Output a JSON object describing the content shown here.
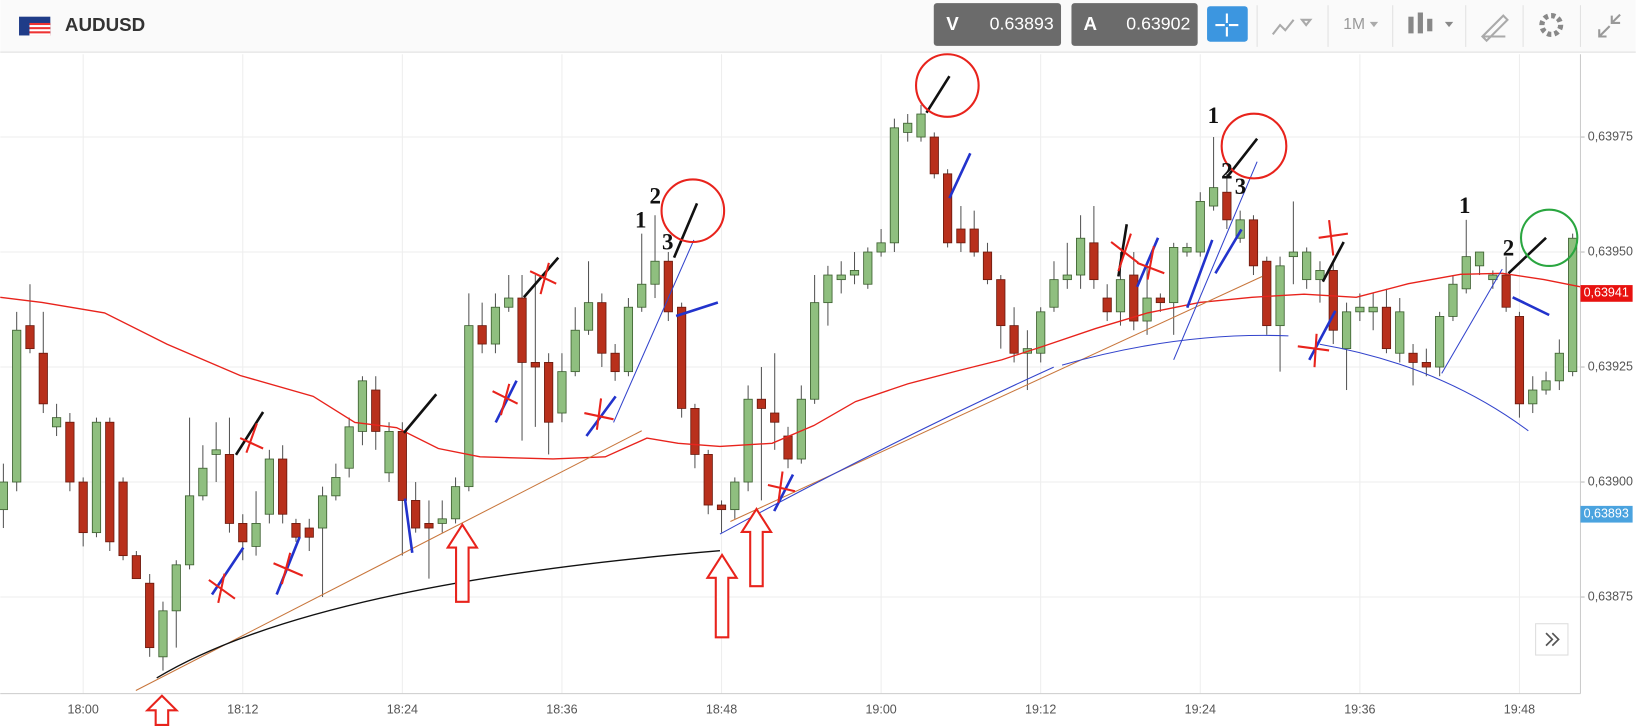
{
  "toolbar": {
    "symbol": "AUDUSD",
    "sell_label": "V",
    "sell_price": "0.63893",
    "buy_label": "A",
    "buy_price": "0.63902",
    "timeframe": "1M"
  },
  "chart_data": {
    "type": "candlestick",
    "up_color": "#8fbf7f",
    "down_color": "#b8301c",
    "grid": true,
    "categories": [
      null,
      null,
      null,
      null,
      null,
      null,
      "18:00",
      null,
      null,
      null,
      null,
      null,
      null,
      null,
      null,
      null,
      null,
      null,
      "18:12",
      null,
      null,
      null,
      null,
      null,
      null,
      null,
      null,
      null,
      null,
      null,
      "18:24",
      null,
      null,
      null,
      null,
      null,
      null,
      null,
      null,
      null,
      null,
      null,
      "18:36",
      null,
      null,
      null,
      null,
      null,
      null,
      null,
      null,
      null,
      null,
      null,
      "18:48",
      null,
      null,
      null,
      null,
      null,
      null,
      null,
      null,
      null,
      null,
      null,
      "19:00",
      null,
      null,
      null,
      null,
      null,
      null,
      null,
      null,
      null,
      null,
      null,
      "19:12",
      null,
      null,
      null,
      null,
      null,
      null,
      null,
      null,
      null,
      null,
      null,
      "19:24",
      null,
      null,
      null,
      null,
      null,
      null,
      null,
      null,
      null,
      null,
      null,
      "19:36",
      null,
      null,
      null,
      null,
      null,
      null,
      null,
      null,
      null,
      null,
      null,
      "19:48",
      null,
      null,
      null,
      null
    ],
    "open": [
      0.63894,
      0.639,
      0.63934,
      0.63928,
      0.63912,
      0.63913,
      0.639,
      0.63889,
      0.63913,
      0.639,
      0.63884,
      0.63878,
      0.63862,
      0.63872,
      0.63882,
      0.63897,
      0.63906,
      0.63906,
      0.63891,
      0.63886,
      0.63893,
      0.63905,
      0.63891,
      0.6389,
      0.6389,
      0.63897,
      0.63903,
      0.63911,
      0.6392,
      0.63902,
      0.63911,
      0.63896,
      0.63891,
      0.63891,
      0.63892,
      0.63899,
      0.63934,
      0.6393,
      0.63938,
      0.6394,
      0.63926,
      0.63926,
      0.63915,
      0.63924,
      0.63933,
      0.63939,
      0.63928,
      0.63924,
      0.63938,
      0.63943,
      0.63948,
      0.63938,
      0.63916,
      0.63906,
      0.63895,
      0.63894,
      0.639,
      0.63918,
      0.63915,
      0.6391,
      0.63905,
      0.63918,
      0.63939,
      0.63944,
      0.63945,
      0.63943,
      0.6395,
      0.63952,
      0.63976,
      0.63975,
      0.63975,
      0.63967,
      0.63955,
      0.63955,
      0.6395,
      0.63944,
      0.63934,
      0.63928,
      0.63928,
      0.63938,
      0.63944,
      0.63945,
      0.63952,
      0.6394,
      0.63937,
      0.63945,
      0.63935,
      0.6394,
      0.63939,
      0.6395,
      0.6395,
      0.6396,
      0.63963,
      0.63953,
      0.63957,
      0.63948,
      0.63934,
      0.63949,
      0.63944,
      0.63944,
      0.63946,
      0.63929,
      0.63937,
      0.63937,
      0.63938,
      0.63928,
      0.63928,
      0.63926,
      0.63925,
      0.63936,
      0.63942,
      0.63947,
      0.63944,
      0.63945,
      0.63936,
      0.63917,
      0.6392,
      0.63922,
      0.63924
    ],
    "high": [
      0.63904,
      0.63937,
      0.63943,
      0.63937,
      0.63917,
      0.63915,
      0.63901,
      0.63914,
      0.63914,
      0.63901,
      0.63885,
      0.6388,
      0.63874,
      0.63883,
      0.63914,
      0.63908,
      0.63913,
      0.63914,
      0.63893,
      0.63898,
      0.63907,
      0.63908,
      0.63892,
      0.63892,
      0.63899,
      0.63904,
      0.63914,
      0.63923,
      0.63923,
      0.63913,
      0.63913,
      0.639,
      0.63896,
      0.63896,
      0.63901,
      0.63941,
      0.63939,
      0.63941,
      0.63945,
      0.63945,
      0.63945,
      0.63928,
      0.63928,
      0.63938,
      0.63948,
      0.63941,
      0.6393,
      0.6394,
      0.63954,
      0.63958,
      0.6395,
      0.63939,
      0.63917,
      0.63907,
      0.63896,
      0.63901,
      0.63921,
      0.63925,
      0.63928,
      0.63912,
      0.63921,
      0.63945,
      0.63947,
      0.63948,
      0.6395,
      0.63951,
      0.63955,
      0.63979,
      0.6398,
      0.63982,
      0.63976,
      0.63968,
      0.6396,
      0.63959,
      0.63952,
      0.63945,
      0.63938,
      0.63933,
      0.63938,
      0.63948,
      0.63952,
      0.63958,
      0.6396,
      0.63943,
      0.6395,
      0.6395,
      0.63948,
      0.63941,
      0.63952,
      0.63952,
      0.63963,
      0.63975,
      0.63967,
      0.63959,
      0.63958,
      0.63949,
      0.63949,
      0.63961,
      0.63951,
      0.63948,
      0.63948,
      0.63939,
      0.63941,
      0.63941,
      0.63942,
      0.6394,
      0.6393,
      0.63929,
      0.63937,
      0.63945,
      0.63957,
      0.6395,
      0.63946,
      0.63949,
      0.63937,
      0.63923,
      0.63924,
      0.63931,
      0.63954
    ],
    "low": [
      0.6389,
      0.63898,
      0.63928,
      0.63915,
      0.6391,
      0.63898,
      0.63886,
      0.63888,
      0.63885,
      0.63883,
      0.63879,
      0.63862,
      0.63859,
      0.63864,
      0.63881,
      0.63896,
      0.639,
      0.63889,
      0.63883,
      0.63884,
      0.63891,
      0.63891,
      0.63887,
      0.63885,
      0.63875,
      0.63896,
      0.63901,
      0.63908,
      0.63907,
      0.639,
      0.63884,
      0.63889,
      0.63879,
      0.63889,
      0.63891,
      0.63898,
      0.63928,
      0.63928,
      0.63937,
      0.63909,
      0.63912,
      0.63906,
      0.63913,
      0.63923,
      0.63932,
      0.63925,
      0.63922,
      0.63923,
      0.63937,
      0.6394,
      0.63935,
      0.63914,
      0.63903,
      0.63893,
      0.63889,
      0.63892,
      0.63898,
      0.63896,
      0.63907,
      0.63903,
      0.63904,
      0.63917,
      0.63934,
      0.63941,
      0.63943,
      0.63942,
      0.63949,
      0.6395,
      0.63974,
      0.63974,
      0.63966,
      0.63951,
      0.6395,
      0.63949,
      0.63943,
      0.63929,
      0.63926,
      0.6392,
      0.63926,
      0.63937,
      0.63942,
      0.63942,
      0.63942,
      0.63935,
      0.63934,
      0.63933,
      0.63932,
      0.63937,
      0.63932,
      0.63949,
      0.63949,
      0.63959,
      0.63955,
      0.63952,
      0.63945,
      0.63932,
      0.63924,
      0.63943,
      0.63942,
      0.63939,
      0.6393,
      0.6392,
      0.63935,
      0.63933,
      0.63928,
      0.63926,
      0.63921,
      0.63923,
      0.63923,
      0.63935,
      0.63941,
      0.63945,
      0.63942,
      0.63937,
      0.63914,
      0.63915,
      0.63919,
      0.6392,
      0.63923
    ],
    "close": [
      0.639,
      0.63933,
      0.63929,
      0.63917,
      0.63914,
      0.639,
      0.63889,
      0.63913,
      0.63887,
      0.63884,
      0.63879,
      0.63864,
      0.63872,
      0.63882,
      0.63897,
      0.63903,
      0.63907,
      0.63891,
      0.63887,
      0.63891,
      0.63905,
      0.63893,
      0.63888,
      0.63888,
      0.63897,
      0.63901,
      0.63912,
      0.63922,
      0.63911,
      0.63911,
      0.63896,
      0.6389,
      0.6389,
      0.63892,
      0.63899,
      0.63934,
      0.6393,
      0.63938,
      0.6394,
      0.63926,
      0.63925,
      0.63913,
      0.63924,
      0.63933,
      0.63939,
      0.63928,
      0.63924,
      0.63938,
      0.63943,
      0.63948,
      0.63937,
      0.63916,
      0.63906,
      0.63895,
      0.63894,
      0.639,
      0.63918,
      0.63916,
      0.63913,
      0.63905,
      0.63918,
      0.63939,
      0.63945,
      0.63945,
      0.63946,
      0.6395,
      0.63952,
      0.63977,
      0.63978,
      0.6398,
      0.63967,
      0.63952,
      0.63952,
      0.6395,
      0.63944,
      0.63934,
      0.63928,
      0.63929,
      0.63937,
      0.63944,
      0.63945,
      0.63953,
      0.63944,
      0.63937,
      0.63944,
      0.63935,
      0.6394,
      0.63939,
      0.63951,
      0.63951,
      0.63961,
      0.63964,
      0.63957,
      0.63957,
      0.63947,
      0.63934,
      0.63947,
      0.6395,
      0.6395,
      0.63946,
      0.63933,
      0.63937,
      0.63938,
      0.63938,
      0.63929,
      0.63937,
      0.63926,
      0.63925,
      0.63936,
      0.63943,
      0.63949,
      0.6395,
      0.63945,
      0.63938,
      0.63917,
      0.6392,
      0.63922,
      0.63928,
      0.63953
    ],
    "ylim": [
      0.63854,
      0.63993
    ],
    "yticks": [
      {
        "value": 0.63875,
        "label": "0,63875"
      },
      {
        "value": 0.639,
        "label": "0,63900"
      },
      {
        "value": 0.63925,
        "label": "0,63925"
      },
      {
        "value": 0.6395,
        "label": "0,63950"
      },
      {
        "value": 0.63975,
        "label": "0,63975"
      }
    ],
    "price_tags": [
      {
        "value": 0.63941,
        "label": "0,63941",
        "color": "#e8110f"
      },
      {
        "value": 0.63893,
        "label": "0,63893",
        "color": "#4aa3df"
      }
    ],
    "annotations": [
      "1",
      "2",
      "3",
      "1",
      "2",
      "3",
      "1",
      "2"
    ]
  }
}
